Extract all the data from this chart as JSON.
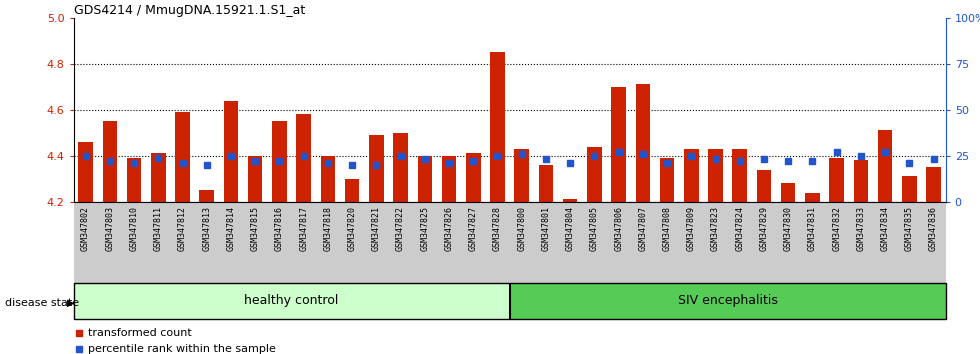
{
  "title": "GDS4214 / MmugDNA.15921.1.S1_at",
  "samples": [
    "GSM347802",
    "GSM347803",
    "GSM347810",
    "GSM347811",
    "GSM347812",
    "GSM347813",
    "GSM347814",
    "GSM347815",
    "GSM347816",
    "GSM347817",
    "GSM347818",
    "GSM347820",
    "GSM347821",
    "GSM347822",
    "GSM347825",
    "GSM347826",
    "GSM347827",
    "GSM347828",
    "GSM347800",
    "GSM347801",
    "GSM347804",
    "GSM347805",
    "GSM347806",
    "GSM347807",
    "GSM347808",
    "GSM347809",
    "GSM347823",
    "GSM347824",
    "GSM347829",
    "GSM347830",
    "GSM347831",
    "GSM347832",
    "GSM347833",
    "GSM347834",
    "GSM347835",
    "GSM347836"
  ],
  "bar_values": [
    4.46,
    4.55,
    4.39,
    4.41,
    4.59,
    4.25,
    4.64,
    4.4,
    4.55,
    4.58,
    4.4,
    4.3,
    4.49,
    4.5,
    4.4,
    4.4,
    4.41,
    4.85,
    4.43,
    4.36,
    4.21,
    4.44,
    4.7,
    4.71,
    4.39,
    4.43,
    4.43,
    4.43,
    4.34,
    4.28,
    4.24,
    4.39,
    4.38,
    4.51,
    4.31,
    4.35
  ],
  "percentile_values": [
    25,
    22,
    21,
    24,
    21,
    20,
    25,
    22,
    22,
    25,
    21,
    20,
    20,
    25,
    23,
    21,
    22,
    25,
    26,
    23,
    21,
    25,
    27,
    26,
    21,
    25,
    23,
    22,
    23,
    22,
    22,
    27,
    25,
    27,
    21,
    23
  ],
  "healthy_count": 18,
  "ymin": 4.2,
  "ymax": 5.0,
  "yticks_left": [
    4.2,
    4.4,
    4.6,
    4.8,
    5.0
  ],
  "yticks_right": [
    0,
    25,
    50,
    75,
    100
  ],
  "ytick_labels_right": [
    "0",
    "25",
    "50",
    "75",
    "100%"
  ],
  "bar_color": "#cc2200",
  "percentile_color": "#2255cc",
  "healthy_bg": "#ccffcc",
  "siv_bg": "#55cc55",
  "xtick_bg": "#cccccc",
  "xlabel_healthy": "healthy control",
  "xlabel_siv": "SIV encephalitis",
  "disease_state_label": "disease state",
  "legend_bar": "transformed count",
  "legend_pct": "percentile rank within the sample",
  "tick_label_color_left": "#cc2200",
  "tick_label_color_right": "#2255cc",
  "grid_dotted_vals": [
    4.4,
    4.6,
    4.8
  ]
}
